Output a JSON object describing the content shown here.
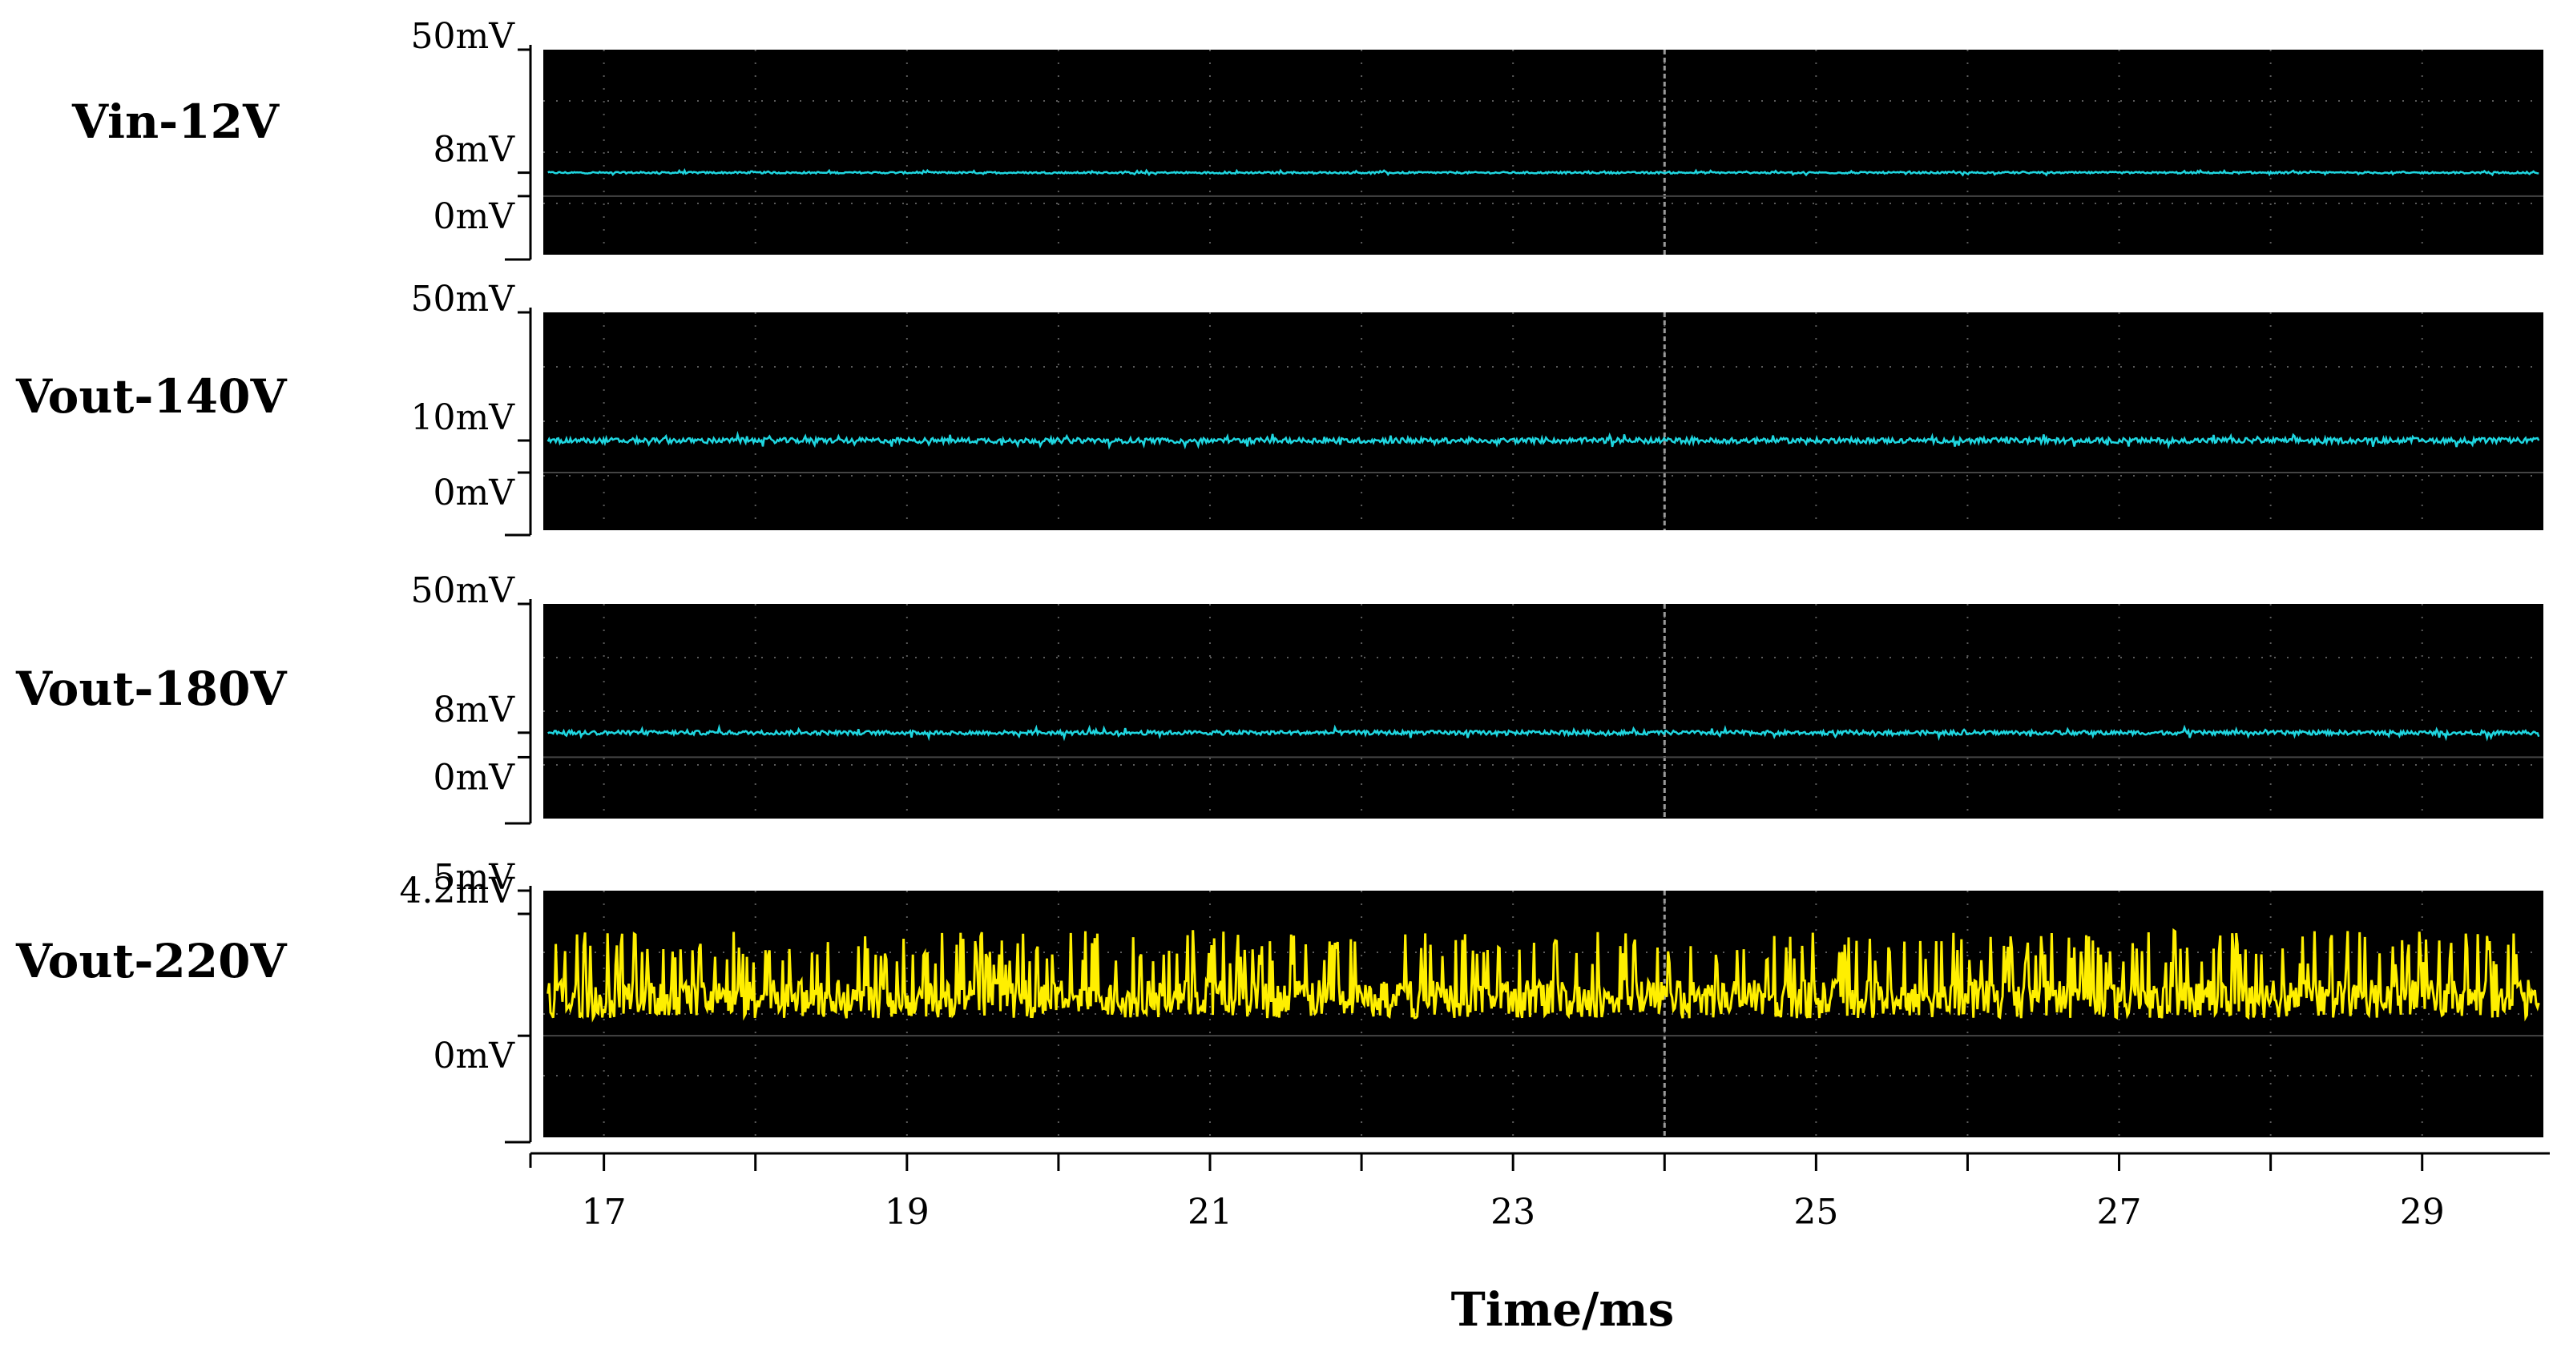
{
  "chart_data": {
    "type": "line",
    "xlabel": "Time/ms",
    "xlim": [
      16.6,
      29.8
    ],
    "x_ticks": [
      17,
      19,
      21,
      23,
      25,
      27,
      29
    ],
    "x_minor_step": 1,
    "grid": true,
    "panels": [
      {
        "name": "Vin-12V",
        "color": "#1fd6e0",
        "ylim": [
          -20,
          50
        ],
        "tick_labels": [
          "50mV",
          "8mV",
          "0mV"
        ],
        "tick_values": [
          50,
          8,
          0
        ],
        "baseline": 8,
        "noise_amplitude": 0.6
      },
      {
        "name": "Vout-140V",
        "color": "#1fd6e0",
        "ylim": [
          -18,
          50
        ],
        "tick_labels": [
          "50mV",
          "10mV",
          "0mV"
        ],
        "tick_values": [
          50,
          10,
          0
        ],
        "baseline": 10,
        "noise_amplitude": 1.6
      },
      {
        "name": "Vout-180V",
        "color": "#1fd6e0",
        "ylim": [
          -20,
          50
        ],
        "tick_labels": [
          "50mV",
          "8mV",
          "0mV"
        ],
        "tick_values": [
          50,
          8,
          0
        ],
        "baseline": 8,
        "noise_amplitude": 1.3
      },
      {
        "name": "Vout-220V",
        "color": "#ffef00",
        "ylim": [
          -3.5,
          5
        ],
        "tick_labels": [
          "5mV",
          "4.2mV",
          "0mV"
        ],
        "tick_values": [
          5,
          4.2,
          0
        ],
        "baseline": 1,
        "noise_amplitude": 2.4
      }
    ]
  }
}
